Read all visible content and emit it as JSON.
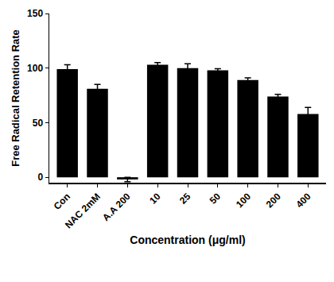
{
  "chart_data": {
    "type": "bar",
    "x_label": "Concentration (μg/ml)",
    "y_label": "Free Radical Retention Rate",
    "categories": [
      "Con",
      "NAC 2mM",
      "A.A 200",
      "10",
      "25",
      "50",
      "100",
      "200",
      "400"
    ],
    "values": [
      99,
      81,
      -2,
      103,
      100,
      98,
      89,
      74,
      58
    ],
    "errors": [
      4,
      4,
      2,
      2,
      4,
      1.5,
      2,
      2,
      6
    ],
    "color": "#000000",
    "ylim": [
      -5,
      150
    ],
    "yticks": [
      0,
      50,
      100,
      150
    ],
    "grid": false
  }
}
